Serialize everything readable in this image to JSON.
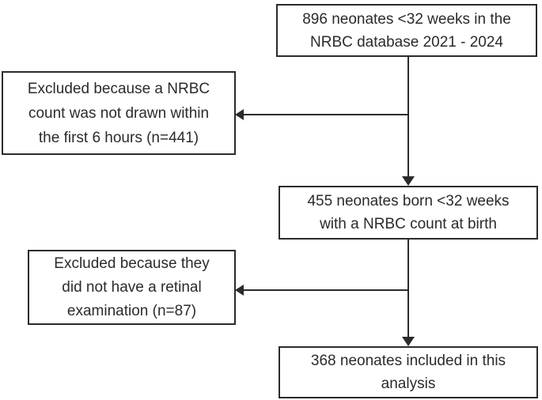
{
  "diagram": {
    "type": "flowchart",
    "background_color": "#ffffff",
    "line_color": "#2b2b2b",
    "text_color": "#2b2b2b",
    "boxes": {
      "top": {
        "n": 896,
        "lines": [
          "896 neonates <32 weeks in the",
          "NRBC database 2021 - 2024"
        ]
      },
      "excluded1": {
        "n": 441,
        "lines": [
          "Excluded because a NRBC",
          "count was not drawn within",
          "the first 6 hours (n=441)"
        ]
      },
      "middle": {
        "n": 455,
        "lines": [
          "455 neonates born <32 weeks",
          "with a NRBC count at birth"
        ]
      },
      "excluded2": {
        "n": 87,
        "lines": [
          "Excluded because they",
          "did not have a retinal",
          "examination (n=87)"
        ]
      },
      "bottom": {
        "n": 368,
        "lines": [
          "368 neonates included in this",
          "analysis"
        ]
      }
    },
    "arrows": [
      {
        "from": "top",
        "to": "middle",
        "direction": "down"
      },
      {
        "from": "top-middle-connector",
        "to": "excluded1",
        "direction": "left"
      },
      {
        "from": "middle",
        "to": "bottom",
        "direction": "down"
      },
      {
        "from": "middle-bottom-connector",
        "to": "excluded2",
        "direction": "left"
      }
    ]
  }
}
